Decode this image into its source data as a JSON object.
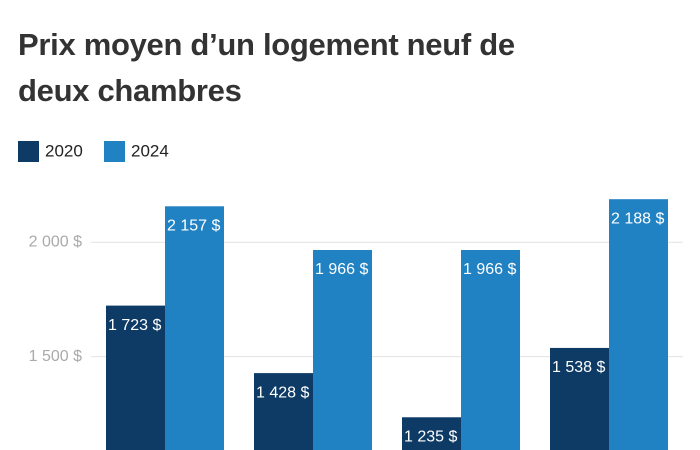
{
  "chart_data": {
    "type": "bar",
    "title": "Prix moyen d’un logement neuf de deux chambres",
    "categories": [
      null,
      null,
      null,
      null
    ],
    "series": [
      {
        "name": "2020",
        "color": "#0d3b66",
        "values": [
          1723,
          1428,
          1235,
          1538
        ],
        "value_labels": [
          "1 723 $",
          "1 428 $",
          "1 235 $",
          "1 538 $"
        ]
      },
      {
        "name": "2024",
        "color": "#2182c3",
        "values": [
          2157,
          1966,
          1966,
          2188
        ],
        "value_labels": [
          "2 157 $",
          "1 966 $",
          "1 966 $",
          "2 188 $"
        ]
      }
    ],
    "ylim": [
      1092,
      2250
    ],
    "yticks": [
      {
        "value": 1500,
        "label": "1 500 $"
      },
      {
        "value": 2000,
        "label": "2 000 $"
      }
    ],
    "grid": true
  }
}
